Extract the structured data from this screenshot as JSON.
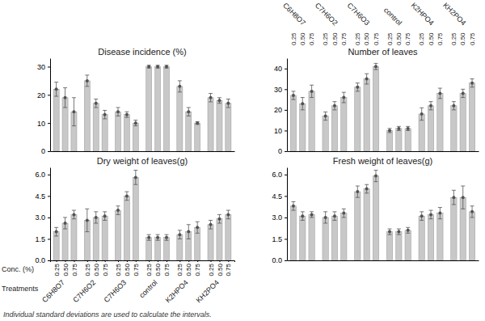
{
  "chart_data": [
    {
      "type": "bar",
      "title": "Disease incidence (%)",
      "categories": [
        "0.25",
        "0.50",
        "0.75",
        "0.25",
        "0.50",
        "0.75",
        "0.25",
        "0.50",
        "0.75",
        "0.25",
        "0.50",
        "0.75",
        "0.25",
        "0.50",
        "0.75",
        "0.25",
        "0.50",
        "0.75"
      ],
      "groups": [
        "C6H8O7",
        "C7H6O2",
        "C7H6O3",
        "control",
        "K2HPO4",
        "KH2PO4"
      ],
      "values": [
        22,
        19,
        14,
        25,
        17,
        13,
        14,
        13,
        10,
        30,
        30,
        30,
        23,
        14,
        10,
        19,
        18,
        17
      ],
      "errors": [
        2.5,
        3.5,
        5.0,
        2.0,
        1.5,
        1.5,
        1.5,
        1.0,
        1.0,
        0.5,
        0.5,
        0.5,
        2.0,
        1.5,
        0.5,
        1.5,
        1.0,
        1.5
      ],
      "color": "#C8C8C8",
      "marker": "circle",
      "ylim": [
        0,
        33
      ],
      "yticks": [
        0,
        10,
        20,
        30
      ],
      "grid": false,
      "tick_labels": "y"
    },
    {
      "type": "bar",
      "title": "Number of leaves",
      "categories": [
        "0.25",
        "0.50",
        "0.75",
        "0.25",
        "0.50",
        "0.75",
        "0.25",
        "0.50",
        "0.75",
        "0.25",
        "0.50",
        "0.75",
        "0.25",
        "0.50",
        "0.75",
        "0.25",
        "0.50",
        "0.75"
      ],
      "groups": [
        "C6H8O7",
        "C7H6O2",
        "C7H6O3",
        "control",
        "K2HPO4",
        "KH2PO4"
      ],
      "values": [
        27,
        23,
        29,
        17,
        22,
        26,
        31,
        35,
        41,
        10,
        11,
        11,
        18,
        22,
        28,
        22,
        28,
        33
      ],
      "errors": [
        2.0,
        3.0,
        3.0,
        2.0,
        2.0,
        2.5,
        2.0,
        2.5,
        1.5,
        1.0,
        1.0,
        1.0,
        3.0,
        2.0,
        2.5,
        2.0,
        2.0,
        2.0
      ],
      "color": "#C8C8C8",
      "marker": "circle",
      "ylim": [
        0,
        45
      ],
      "yticks": [
        0,
        10,
        20,
        30,
        40
      ],
      "grid": false
    },
    {
      "type": "bar",
      "title": "Dry weight of leaves(g)",
      "xlabel": "Conc. (%)",
      "group_label": "Treatments",
      "categories": [
        "0.25",
        "0.50",
        "0.75",
        "0.25",
        "0.50",
        "0.75",
        "0.25",
        "0.50",
        "0.75",
        "0.25",
        "0.50",
        "0.75",
        "0.25",
        "0.50",
        "0.75",
        "0.25",
        "0.50",
        "0.75"
      ],
      "groups": [
        "C6H8O7",
        "C7H6O2",
        "C7H6O3",
        "control",
        "K2HPO4",
        "KH2PO4"
      ],
      "values": [
        2.0,
        2.6,
        3.2,
        2.8,
        3.0,
        3.1,
        3.5,
        4.5,
        5.8,
        1.6,
        1.6,
        1.6,
        1.8,
        2.0,
        2.3,
        2.5,
        2.9,
        3.2
      ],
      "errors": [
        0.3,
        0.4,
        0.3,
        0.8,
        0.4,
        0.3,
        0.3,
        0.3,
        0.5,
        0.2,
        0.2,
        0.2,
        0.3,
        0.5,
        0.4,
        0.3,
        0.3,
        0.3
      ],
      "color": "#C8C8C8",
      "marker": "circle",
      "ylim": [
        0.0,
        6.5
      ],
      "yticks": [
        {
          "value": 0.0,
          "label": "0.0"
        },
        1.5,
        {
          "value": 3.0,
          "label": "3.0"
        },
        4.5,
        {
          "value": 6.0,
          "label": "6.0"
        }
      ],
      "grid": false
    },
    {
      "type": "bar",
      "title": "Fresh weight of leaves(g)",
      "categories": [
        "0.25",
        "0.50",
        "0.75",
        "0.25",
        "0.50",
        "0.75",
        "0.25",
        "0.50",
        "0.75",
        "0.25",
        "0.50",
        "0.75",
        "0.25",
        "0.50",
        "0.75",
        "0.25",
        "0.50",
        "0.75"
      ],
      "groups": [
        "C6H8O7",
        "C7H6O2",
        "C7H6O3",
        "control",
        "K2HPO4",
        "KH2PO4"
      ],
      "values": [
        3.8,
        3.1,
        3.2,
        3.0,
        3.1,
        3.3,
        4.8,
        5.0,
        5.9,
        2.0,
        2.0,
        2.1,
        3.1,
        3.2,
        3.3,
        4.4,
        4.4,
        3.4
      ],
      "errors": [
        0.3,
        0.3,
        0.2,
        0.4,
        0.3,
        0.3,
        0.4,
        0.3,
        0.4,
        0.2,
        0.2,
        0.2,
        0.3,
        0.3,
        0.4,
        0.5,
        0.8,
        0.4
      ],
      "color": "#C8C8C8",
      "marker": "circle",
      "ylim": [
        0.0,
        6.5
      ],
      "yticks": [
        {
          "value": 0.0,
          "label": "0.0"
        },
        1.5,
        {
          "value": 3.0,
          "label": "3.0"
        },
        4.5,
        {
          "value": 6.0,
          "label": "6.0"
        }
      ],
      "grid": false,
      "tick_labels": "y"
    }
  ],
  "footnote": "Individual standard deviations are used to calculate the intervals."
}
